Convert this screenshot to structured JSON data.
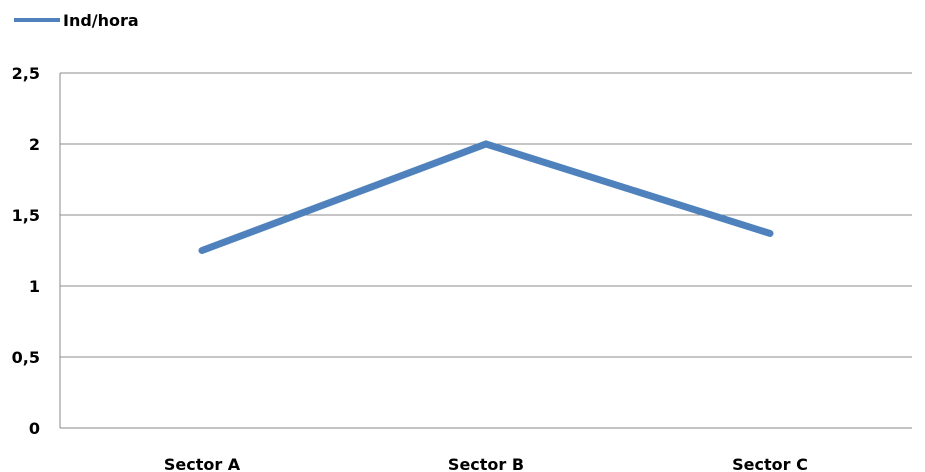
{
  "chart_data": {
    "type": "line",
    "categories": [
      "Sector A",
      "Sector B",
      "Sector C"
    ],
    "series": [
      {
        "name": "Ind/hora",
        "values": [
          1.25,
          2.0,
          1.37
        ],
        "color": "#4F81BD"
      }
    ],
    "yticks": [
      "0",
      "0,5",
      "1",
      "1,5",
      "2",
      "2,5"
    ],
    "ylim": [
      0,
      2.5
    ],
    "grid": true,
    "legend_position": "top-left"
  }
}
